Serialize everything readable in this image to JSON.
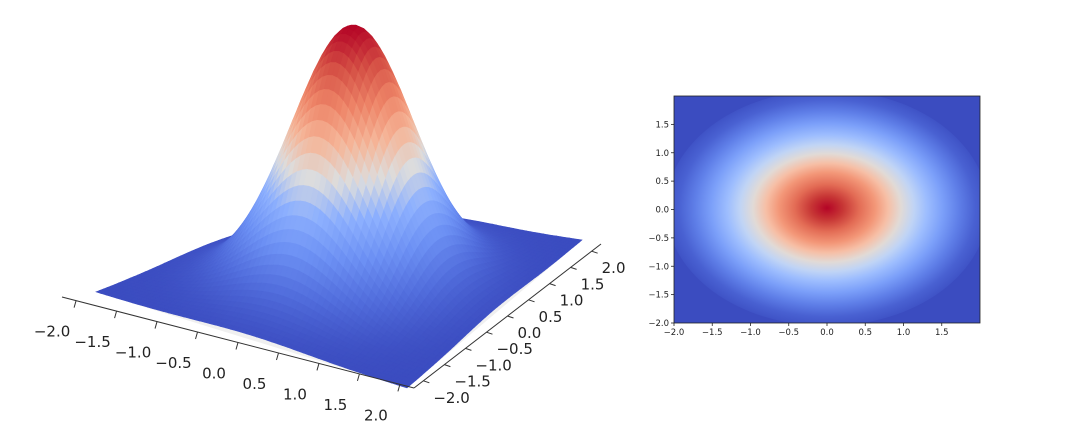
{
  "chart_data": [
    {
      "type": "surface",
      "function": "z = exp(-(x^2 + y^2))",
      "colormap": "coolwarm",
      "x_ticks": [
        "−2.0",
        "−1.5",
        "−1.0",
        "−0.5",
        "0.0",
        "0.5",
        "1.0",
        "1.5",
        "2.0"
      ],
      "y_ticks": [
        "−2.0",
        "−1.5",
        "−1.0",
        "−0.5",
        "0.0",
        "0.5",
        "1.0",
        "1.5",
        "2.0"
      ],
      "xlim": [
        -2,
        2
      ],
      "ylim": [
        -2,
        2
      ],
      "zlim": [
        0,
        1
      ],
      "grid_points": 60
    },
    {
      "type": "heatmap",
      "function": "z = exp(-(x^2 + y^2))",
      "colormap": "coolwarm",
      "x_ticks": [
        "−2.0",
        "−1.5",
        "−1.0",
        "−0.5",
        "0.0",
        "0.5",
        "1.0",
        "1.5"
      ],
      "y_ticks": [
        "1.5",
        "1.0",
        "0.5",
        "0.0",
        "−0.5",
        "−1.0",
        "−1.5",
        "−2.0"
      ],
      "xlim": [
        -2,
        2
      ],
      "ylim": [
        -2,
        2
      ]
    }
  ]
}
